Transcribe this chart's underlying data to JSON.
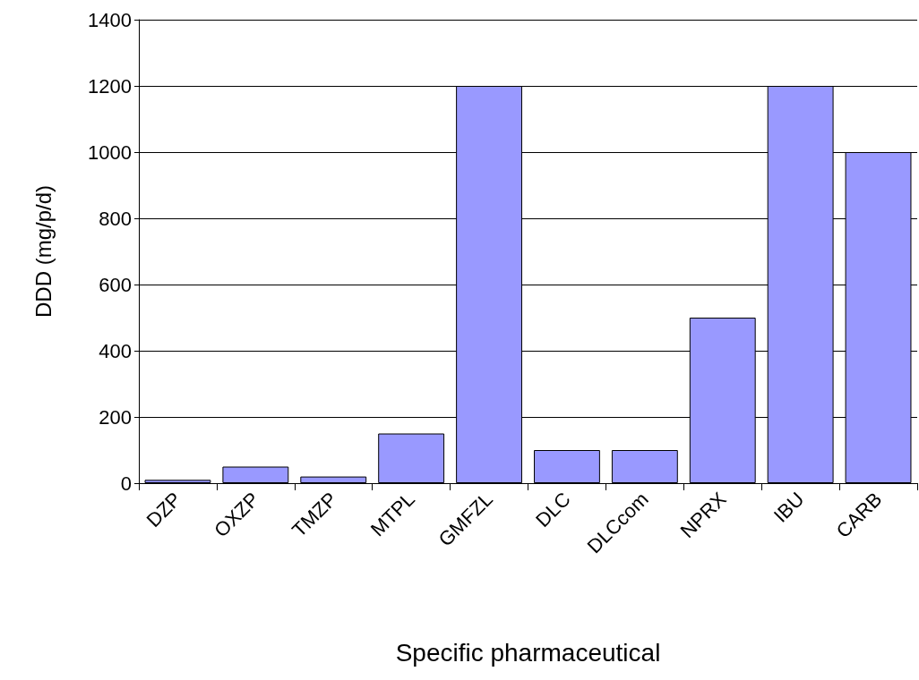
{
  "chart_data": {
    "type": "bar",
    "xlabel": "Specific pharmaceutical",
    "ylabel": "DDD (mg/p/d)",
    "categories": [
      "DZP",
      "OXZP",
      "TMZP",
      "MTPL",
      "GMFZL",
      "DLC",
      "DLCcom",
      "NPRX",
      "IBU",
      "CARB"
    ],
    "values": [
      10,
      50,
      20,
      150,
      1200,
      100,
      100,
      500,
      1200,
      1000
    ],
    "color": "#9999ff",
    "ylim": [
      0,
      1400
    ],
    "yticks": [
      0,
      200,
      400,
      600,
      800,
      1000,
      1200,
      1400
    ],
    "grid": "y"
  }
}
